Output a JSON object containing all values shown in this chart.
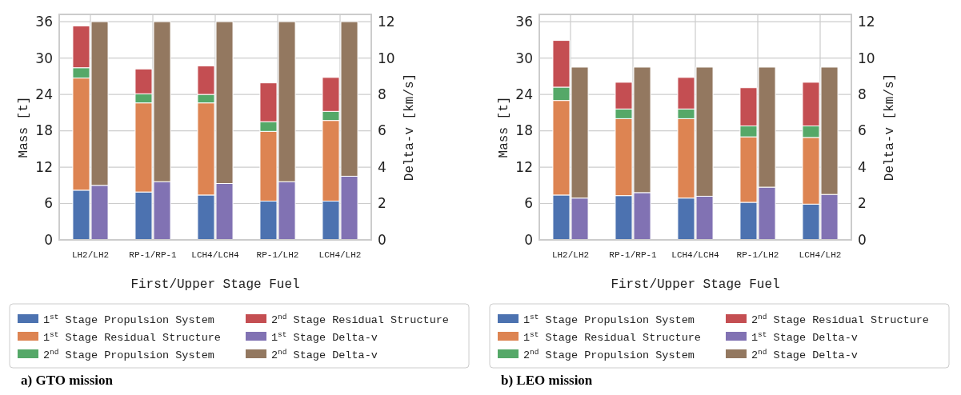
{
  "chart_data": [
    {
      "type": "bar",
      "title": "a) GTO mission",
      "xlabel": "First/Upper Stage Fuel",
      "ylabel": "Mass [t]",
      "y2label": "Delta-v [km/s]",
      "categories": [
        "LH2/LH2",
        "RP-1/RP-1",
        "LCH4/LCH4",
        "RP-1/LH2",
        "LCH4/LH2"
      ],
      "stacked": true,
      "grid": true,
      "legend": "bottom",
      "ylim": [
        0,
        37.2
      ],
      "yticks": [
        0,
        6,
        12,
        18,
        24,
        30,
        36
      ],
      "y2lim": [
        0,
        12.4
      ],
      "y2ticks": [
        0,
        2,
        4,
        6,
        8,
        10,
        12
      ],
      "series": [
        {
          "name": "1$^{st}$ Stage Propulsion System",
          "color": "#4c72b0",
          "values": [
            8.2,
            7.9,
            7.4,
            6.4,
            6.4
          ]
        },
        {
          "name": "1$^{st}$ Stage Residual Structure",
          "color": "#dd8452",
          "values": [
            18.5,
            14.7,
            15.2,
            11.5,
            13.3
          ]
        },
        {
          "name": "2$^{nd}$ Stage Propulsion System",
          "color": "#55a868",
          "values": [
            1.7,
            1.5,
            1.4,
            1.6,
            1.5
          ]
        },
        {
          "name": "2$^{nd}$ Stage Residual Structure",
          "color": "#c44e52",
          "values": [
            6.9,
            4.1,
            4.7,
            6.4,
            5.6
          ]
        },
        {
          "name": "1$^{st}$ Stage Delta-v",
          "color": "#8172b3",
          "axis": "y2",
          "values": [
            3.0,
            3.2,
            3.1,
            3.2,
            3.5
          ]
        },
        {
          "name": "2$^{nd}$ Stage Delta-v",
          "color": "#937860",
          "axis": "y2",
          "values": [
            9.0,
            8.8,
            8.9,
            8.8,
            8.5
          ]
        }
      ]
    },
    {
      "type": "bar",
      "title": "b) LEO mission",
      "xlabel": "First/Upper Stage Fuel",
      "ylabel": "Mass [t]",
      "y2label": "Delta-v [km/s]",
      "categories": [
        "LH2/LH2",
        "RP-1/RP-1",
        "LCH4/LCH4",
        "RP-1/LH2",
        "LCH4/LH2"
      ],
      "stacked": true,
      "grid": true,
      "legend": "bottom",
      "ylim": [
        0,
        37.2
      ],
      "yticks": [
        0,
        6,
        12,
        18,
        24,
        30,
        36
      ],
      "y2lim": [
        0,
        12.4
      ],
      "y2ticks": [
        0,
        2,
        4,
        6,
        8,
        10,
        12
      ],
      "series": [
        {
          "name": "1$^{st}$ Stage Propulsion System",
          "color": "#4c72b0",
          "values": [
            7.4,
            7.3,
            6.9,
            6.2,
            5.9
          ]
        },
        {
          "name": "1$^{st}$ Stage Residual Structure",
          "color": "#dd8452",
          "values": [
            15.6,
            12.7,
            13.1,
            10.8,
            11.0
          ]
        },
        {
          "name": "2$^{nd}$ Stage Propulsion System",
          "color": "#55a868",
          "values": [
            2.2,
            1.6,
            1.6,
            1.8,
            1.9
          ]
        },
        {
          "name": "2$^{nd}$ Stage Residual Structure",
          "color": "#c44e52",
          "values": [
            7.7,
            4.4,
            5.2,
            6.3,
            7.2
          ]
        },
        {
          "name": "1$^{st}$ Stage Delta-v",
          "color": "#8172b3",
          "axis": "y2",
          "values": [
            2.3,
            2.6,
            2.4,
            2.9,
            2.5
          ]
        },
        {
          "name": "2$^{nd}$ Stage Delta-v",
          "color": "#937860",
          "axis": "y2",
          "values": [
            7.2,
            6.9,
            7.1,
            6.6,
            7.0
          ]
        }
      ]
    }
  ]
}
